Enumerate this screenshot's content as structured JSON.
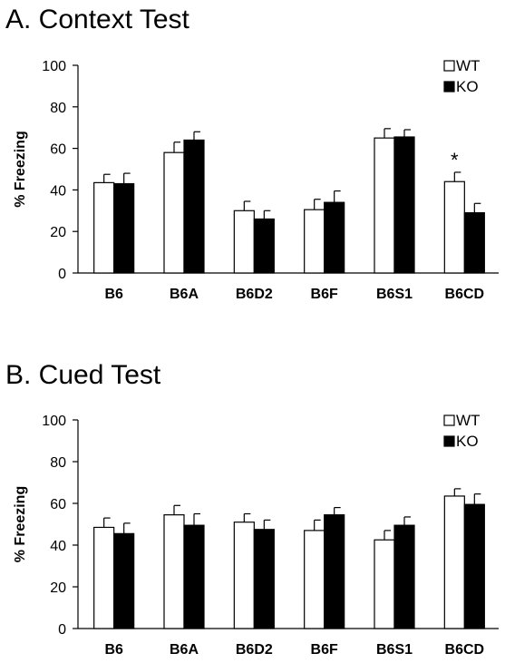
{
  "chart_data": [
    {
      "type": "bar",
      "title": "A. Context Test",
      "ylabel": "% Freezing",
      "xlabel": "",
      "ylim": [
        0,
        100
      ],
      "yticks": [
        0,
        20,
        40,
        60,
        80,
        100
      ],
      "categories": [
        "B6",
        "B6A",
        "B6D2",
        "B6F",
        "B6S1",
        "B6CD"
      ],
      "series": [
        {
          "name": "WT",
          "color": "#ffffff",
          "values": [
            43.5,
            58,
            30,
            30.5,
            65,
            44
          ],
          "errors": [
            4,
            5,
            4.5,
            5,
            4.5,
            4.5
          ]
        },
        {
          "name": "KO",
          "color": "#000000",
          "values": [
            43,
            64,
            26,
            34,
            65.5,
            29
          ],
          "errors": [
            5,
            4,
            4,
            5.5,
            3.5,
            4.5
          ]
        }
      ],
      "annotations": [
        {
          "category": "B6CD",
          "text": "*"
        }
      ],
      "legend_position": "top-right"
    },
    {
      "type": "bar",
      "title": "B. Cued Test",
      "ylabel": "% Freezing",
      "xlabel": "",
      "ylim": [
        0,
        100
      ],
      "yticks": [
        0,
        20,
        40,
        60,
        80,
        100
      ],
      "categories": [
        "B6",
        "B6A",
        "B6D2",
        "B6F",
        "B6S1",
        "B6CD"
      ],
      "series": [
        {
          "name": "WT",
          "color": "#ffffff",
          "values": [
            48.5,
            54.5,
            51,
            47,
            42.5,
            63.5
          ],
          "errors": [
            4.5,
            4.5,
            4,
            5,
            4.5,
            3.5
          ]
        },
        {
          "name": "KO",
          "color": "#000000",
          "values": [
            45.5,
            49.5,
            47.5,
            54.5,
            49.5,
            59.5
          ],
          "errors": [
            5,
            5.5,
            4.5,
            3.5,
            4,
            5
          ]
        }
      ],
      "annotations": [],
      "legend_position": "top-right"
    }
  ]
}
